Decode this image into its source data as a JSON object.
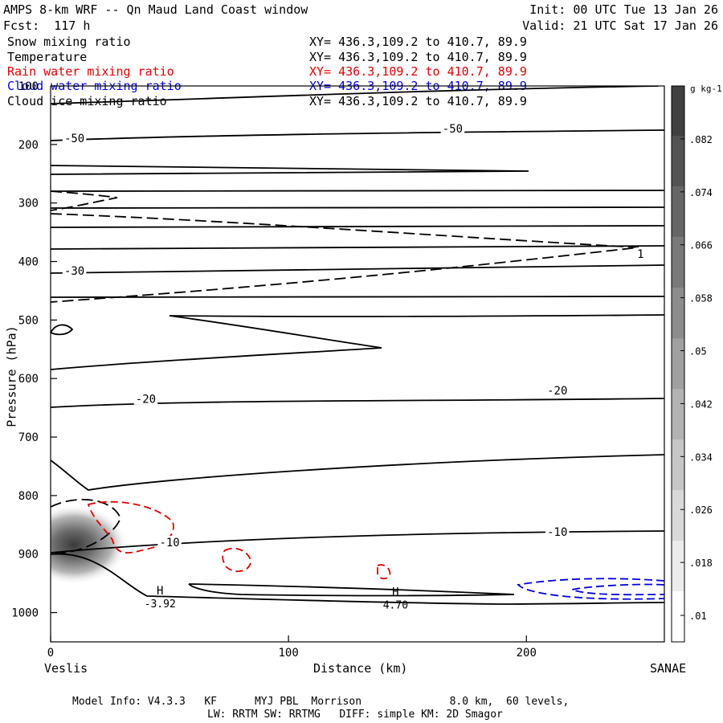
{
  "header": {
    "title": "AMPS 8-km WRF -- Qn Maud Land Coast window",
    "init": "Init: 00 UTC Tue 13 Jan 26",
    "forecast": "Fcst:  117 h",
    "valid": "Valid: 21 UTC Sat 17 Jan 26"
  },
  "legend": {
    "items": [
      {
        "label": "Snow mixing ratio",
        "xy": "XY= 436.3,109.2 to 410.7, 89.9",
        "color": "#000000"
      },
      {
        "label": "Temperature",
        "xy": "XY= 436.3,109.2 to 410.7, 89.9",
        "color": "#000000"
      },
      {
        "label": "Rain water mixing ratio",
        "xy": "XY= 436.3,109.2 to 410.7, 89.9",
        "color": "#e00000"
      },
      {
        "label": "Cloud water mixing ratio",
        "xy": "XY= 436.3,109.2 to 410.7, 89.9",
        "color": "#0000e0"
      },
      {
        "label": "Cloud ice mixing ratio",
        "xy": "XY= 436.3,109.2 to 410.7, 89.9",
        "color": "#000000"
      }
    ]
  },
  "chart_data": {
    "type": "contour-cross-section",
    "title": "AMPS 8-km WRF -- Qn Maud Land Coast window",
    "xlabel": "Distance (km)",
    "ylabel": "Pressure (hPa)",
    "xlim": [
      0,
      258
    ],
    "ylim": [
      1050,
      100
    ],
    "x_ticks": [
      0,
      100,
      200
    ],
    "y_ticks": [
      100,
      200,
      300,
      400,
      500,
      600,
      700,
      800,
      900,
      1000
    ],
    "left_endpoint": "Veslis",
    "right_endpoint": "SANAE",
    "temperature_labels": [
      {
        "text": "-50",
        "x": 10,
        "p": 189
      },
      {
        "text": "-50",
        "x": 169,
        "p": 173
      },
      {
        "text": "-30",
        "x": 10,
        "p": 416
      },
      {
        "text": "-20",
        "x": 40,
        "p": 635
      },
      {
        "text": "-20",
        "x": 213,
        "p": 620
      },
      {
        "text": "-10",
        "x": 50,
        "p": 880
      },
      {
        "text": "-10",
        "x": 213,
        "p": 862
      }
    ],
    "cloud_ice_labels": [
      {
        "text": "1",
        "x": 248,
        "p": 387
      }
    ],
    "highs": [
      {
        "symbol": "H",
        "value": "-3.92",
        "x": 46,
        "p": 983
      },
      {
        "symbol": "H",
        "value": "4.70",
        "x": 145,
        "p": 985
      }
    ],
    "colorbar": {
      "unit": "g kg-1",
      "ticks": [
        ".01",
        ".018",
        ".026",
        ".034",
        ".042",
        ".05",
        ".058",
        ".066",
        ".074",
        ".082"
      ],
      "min": 0.006,
      "max": 0.09
    },
    "snow_max": {
      "x": 12,
      "p": 870,
      "value": 0.04
    }
  },
  "footer": {
    "line1": "Model Info: V4.3.3   KF      MYJ PBL  Morrison              8.0 km,  60 levels,",
    "line2": "LW: RRTM SW: RRTMG   DIFF: simple KM: 2D Smagor"
  }
}
